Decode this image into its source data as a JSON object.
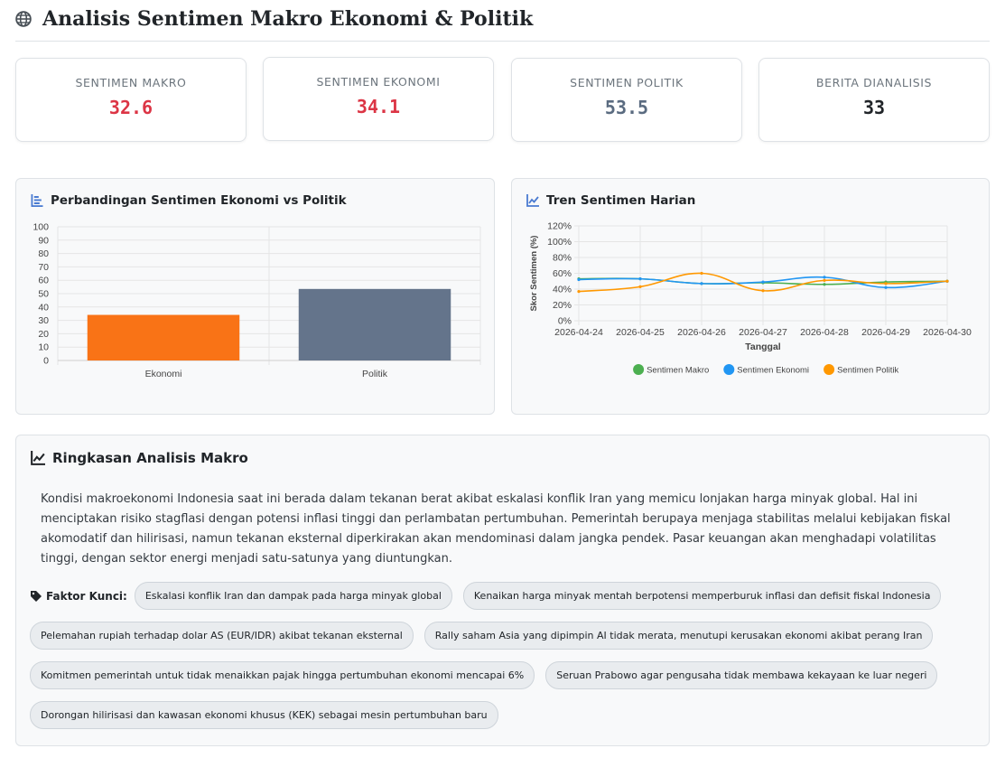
{
  "header": {
    "title": "Analisis Sentimen Makro Ekonomi & Politik",
    "icon": "globe-icon"
  },
  "stats": [
    {
      "label": "SENTIMEN MAKRO",
      "value": "32.6",
      "color": "#dc3545"
    },
    {
      "label": "SENTIMEN EKONOMI",
      "value": "34.1",
      "color": "#dc3545"
    },
    {
      "label": "SENTIMEN POLITIK",
      "value": "53.5",
      "color": "#5a6b80"
    },
    {
      "label": "BERITA DIANALISIS",
      "value": "33",
      "color": "#212529"
    }
  ],
  "bar_panel": {
    "title": "Perbandingan Sentimen Ekonomi vs Politik",
    "icon": "bar-chart-icon"
  },
  "trend_panel": {
    "title": "Tren Sentimen Harian",
    "icon": "line-chart-icon"
  },
  "chart_data": [
    {
      "type": "bar",
      "categories": [
        "Ekonomi",
        "Politik"
      ],
      "values": [
        34.1,
        53.5
      ],
      "colors": [
        "#f97316",
        "#64748b"
      ],
      "ylim": [
        0,
        100
      ],
      "yticks": [
        0,
        10,
        20,
        30,
        40,
        50,
        60,
        70,
        80,
        90,
        100
      ],
      "grid": true
    },
    {
      "type": "line",
      "x": [
        "2026-04-24",
        "2026-04-25",
        "2026-04-26",
        "2026-04-27",
        "2026-04-28",
        "2026-04-29",
        "2026-04-30"
      ],
      "ylabel": "Skor Sentimen (%)",
      "xlabel": "Tanggal",
      "ylim": [
        0,
        120
      ],
      "yticks": [
        "0%",
        "20%",
        "40%",
        "60%",
        "80%",
        "100%",
        "120%"
      ],
      "legend": "bottom",
      "grid": true,
      "series": [
        {
          "name": "Sentimen Makro",
          "color": "#4caf50",
          "values": [
            53,
            53,
            47,
            48,
            46,
            49,
            50
          ]
        },
        {
          "name": "Sentimen Ekonomi",
          "color": "#2196f3",
          "values": [
            52,
            53,
            47,
            49,
            55,
            42,
            50
          ]
        },
        {
          "name": "Sentimen Politik",
          "color": "#ff9800",
          "values": [
            37,
            43,
            60,
            38,
            51,
            47,
            50
          ]
        }
      ]
    }
  ],
  "summary": {
    "title": "Ringkasan Analisis Makro",
    "icon": "line-chart-icon",
    "text": "Kondisi makroekonomi Indonesia saat ini berada dalam tekanan berat akibat eskalasi konflik Iran yang memicu lonjakan harga minyak global. Hal ini menciptakan risiko stagflasi dengan potensi inflasi tinggi dan perlambatan pertumbuhan. Pemerintah berupaya menjaga stabilitas melalui kebijakan fiskal akomodatif dan hilirisasi, namun tekanan eksternal diperkirakan akan mendominasi dalam jangka pendek. Pasar keuangan akan menghadapi volatilitas tinggi, dengan sektor energi menjadi satu-satunya yang diuntungkan.",
    "factors_label": "Faktor Kunci:",
    "factors_icon": "tags-icon",
    "factors": [
      "Eskalasi konflik Iran dan dampak pada harga minyak global",
      "Kenaikan harga minyak mentah berpotensi memperburuk inflasi dan defisit fiskal Indonesia",
      "Pelemahan rupiah terhadap dolar AS (EUR/IDR) akibat tekanan eksternal",
      "Rally saham Asia yang dipimpin AI tidak merata, menutupi kerusakan ekonomi akibat perang Iran",
      "Komitmen pemerintah untuk tidak menaikkan pajak hingga pertumbuhan ekonomi mencapai 6%",
      "Seruan Prabowo agar pengusaha tidak membawa kekayaan ke luar negeri",
      "Dorongan hilirisasi dan kawasan ekonomi khusus (KEK) sebagai mesin pertumbuhan baru"
    ]
  }
}
